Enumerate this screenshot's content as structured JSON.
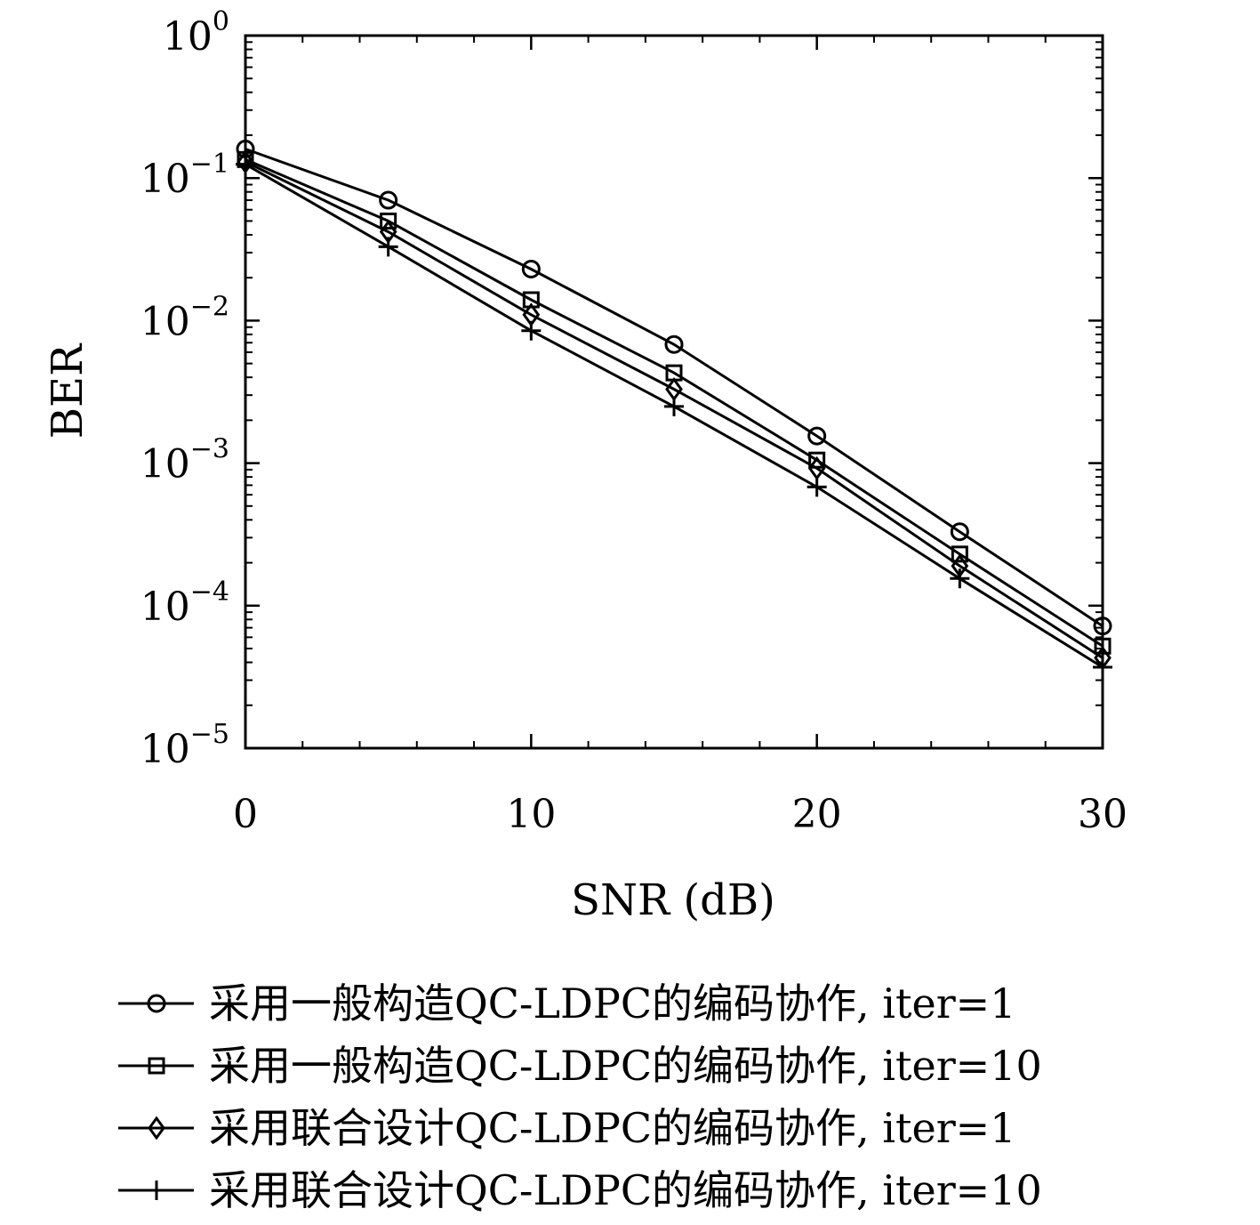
{
  "chart_data": {
    "type": "line",
    "title": "",
    "xlabel": "SNR (dB)",
    "ylabel": "BER",
    "xlim": [
      0,
      30
    ],
    "ylim": [
      1e-05,
      1
    ],
    "yscale": "log",
    "xticks": [
      0,
      10,
      20,
      30
    ],
    "xtick_labels": [
      "0",
      "10",
      "20",
      "30"
    ],
    "yticks": [
      1,
      0.1,
      0.01,
      0.001,
      0.0001,
      1e-05
    ],
    "ytick_labels": [
      {
        "base": "10",
        "exp": "0"
      },
      {
        "base": "10",
        "exp": "−1"
      },
      {
        "base": "10",
        "exp": "−2"
      },
      {
        "base": "10",
        "exp": "−3"
      },
      {
        "base": "10",
        "exp": "−4"
      },
      {
        "base": "10",
        "exp": "−5"
      }
    ],
    "grid": false,
    "legend_position": "bottom",
    "x": [
      0,
      5,
      10,
      15,
      20,
      25,
      30
    ],
    "series": [
      {
        "name": "采用一般构造QC-LDPC的编码协作, iter=1",
        "marker": "circle",
        "values": [
          0.16,
          0.07,
          0.023,
          0.0068,
          0.00155,
          0.00033,
          7.2e-05
        ]
      },
      {
        "name": "采用一般构造QC-LDPC的编码协作, iter=10",
        "marker": "square",
        "values": [
          0.135,
          0.05,
          0.014,
          0.0043,
          0.00105,
          0.00023,
          5.2e-05
        ]
      },
      {
        "name": "采用联合设计QC-LDPC的编码协作, iter=1",
        "marker": "diamond",
        "values": [
          0.13,
          0.042,
          0.011,
          0.0033,
          0.00092,
          0.00019,
          4.3e-05
        ]
      },
      {
        "name": "采用联合设计QC-LDPC的编码协作, iter=10",
        "marker": "plus",
        "values": [
          0.125,
          0.033,
          0.0085,
          0.0025,
          0.00068,
          0.000155,
          3.7e-05
        ]
      }
    ]
  }
}
